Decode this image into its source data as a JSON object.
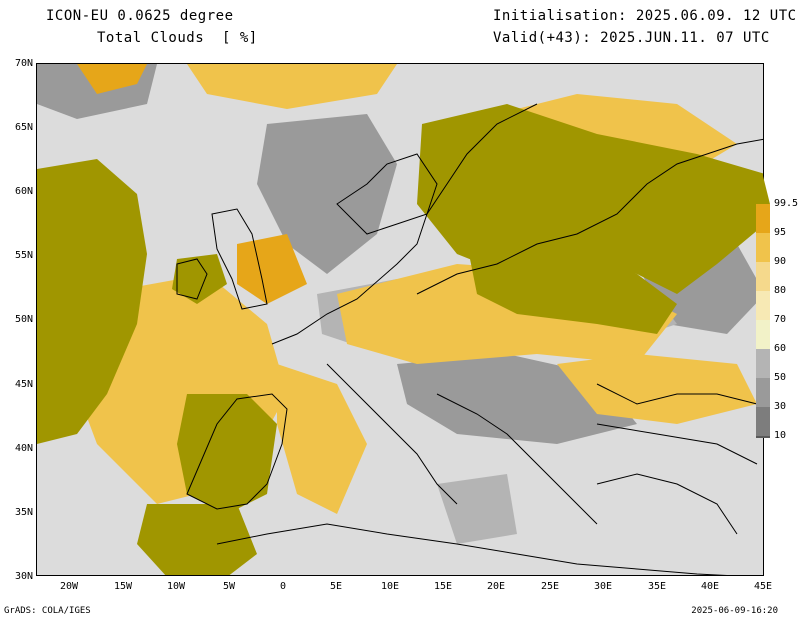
{
  "header": {
    "model": "ICON-EU 0.0625 degree",
    "field": "Total Clouds  [ %]",
    "initialisation": "Initialisation: 2025.06.09. 12 UTC",
    "valid": "Valid(+43): 2025.JUN.11. 07 UTC"
  },
  "axes": {
    "lat_ticks": [
      "70N",
      "65N",
      "60N",
      "55N",
      "50N",
      "45N",
      "40N",
      "35N",
      "30N"
    ],
    "lon_ticks": [
      "20W",
      "15W",
      "10W",
      "5W",
      "0",
      "5E",
      "10E",
      "15E",
      "20E",
      "25E",
      "30E",
      "35E",
      "40E",
      "45E"
    ],
    "lon_range": [
      -23,
      45
    ],
    "lat_range": [
      30,
      70
    ]
  },
  "colorbar": {
    "levels": [
      "99.5",
      "95",
      "90",
      "80",
      "70",
      "60",
      "50",
      "30",
      "10"
    ],
    "colors": [
      "#a09600",
      "#e6a619",
      "#f0c34b",
      "#f5d98c",
      "#f7e9b4",
      "#f2f2c8",
      "#b4b4b4",
      "#9a9a9a",
      "#7d7d7d",
      "#5a5a5a"
    ]
  },
  "palette": {
    "overcast": "#a09600",
    "high_cloud": "#e6a619",
    "partly_cloudy": "#f0c34b",
    "clear_sky": "#dcdcdc",
    "thin_cloud": "#9a9a9a",
    "coastline": "#000000"
  },
  "footer": {
    "left": "GrADS: COLA/IGES",
    "right": "2025-06-09-16:20"
  }
}
